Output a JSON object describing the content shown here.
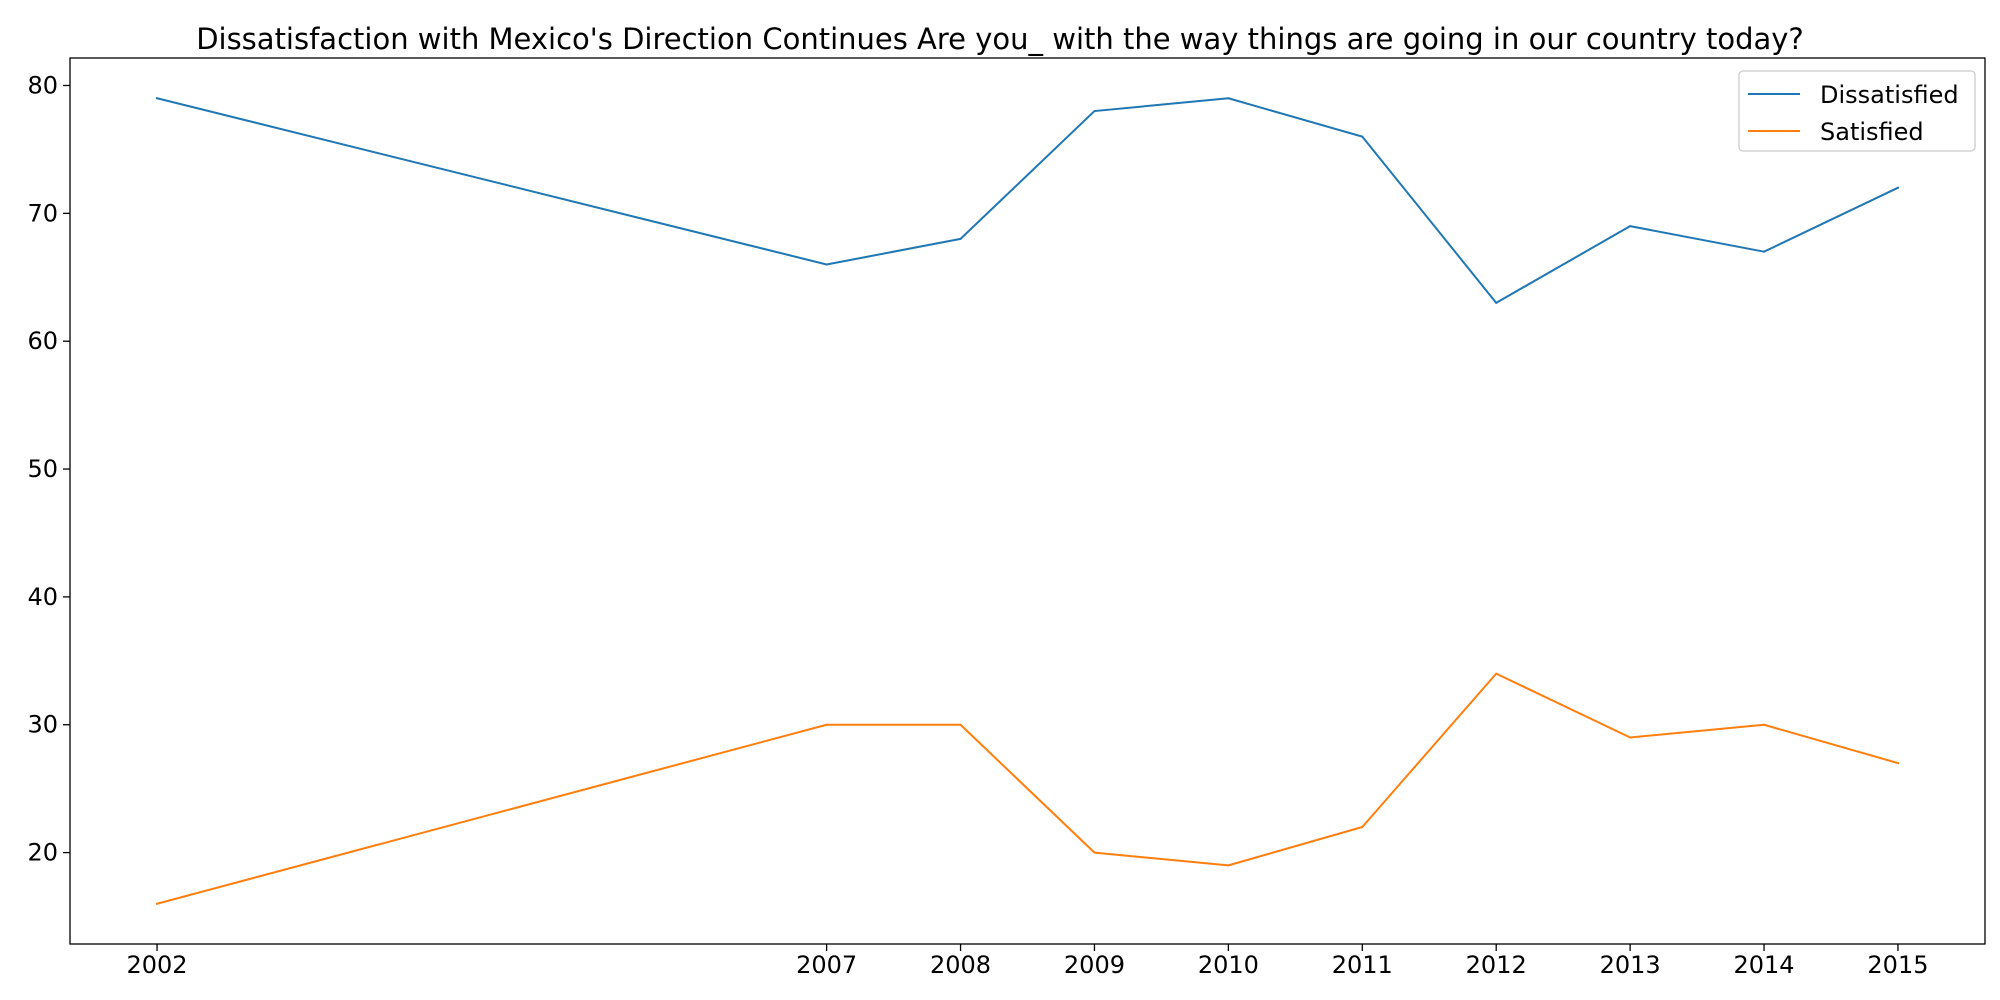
{
  "chart_data": {
    "type": "line",
    "title": "Dissatisfaction with Mexico's Direction Continues Are you_ with the way things are going in our country today?",
    "xlabel": "",
    "ylabel": "",
    "x": [
      2002,
      2007,
      2008,
      2009,
      2010,
      2011,
      2012,
      2013,
      2014,
      2015
    ],
    "x_tick_labels": [
      "2002",
      "2007",
      "2008",
      "2009",
      "2010",
      "2011",
      "2012",
      "2013",
      "2014",
      "2015"
    ],
    "y_ticks": [
      20,
      30,
      40,
      50,
      60,
      70,
      80
    ],
    "y_tick_labels": [
      "20",
      "30",
      "40",
      "50",
      "60",
      "70",
      "80"
    ],
    "xlim": [
      2001.35,
      2015.65
    ],
    "ylim": [
      12.85,
      82.15
    ],
    "grid": false,
    "legend_position": "top-right",
    "series": [
      {
        "name": "Dissatisfied",
        "color": "#1f77b4",
        "values": [
          79,
          66,
          68,
          78,
          79,
          76,
          63,
          69,
          67,
          72
        ]
      },
      {
        "name": "Satisfied",
        "color": "#ff7f0e",
        "values": [
          16,
          30,
          30,
          20,
          19,
          22,
          34,
          29,
          30,
          27
        ]
      }
    ]
  }
}
